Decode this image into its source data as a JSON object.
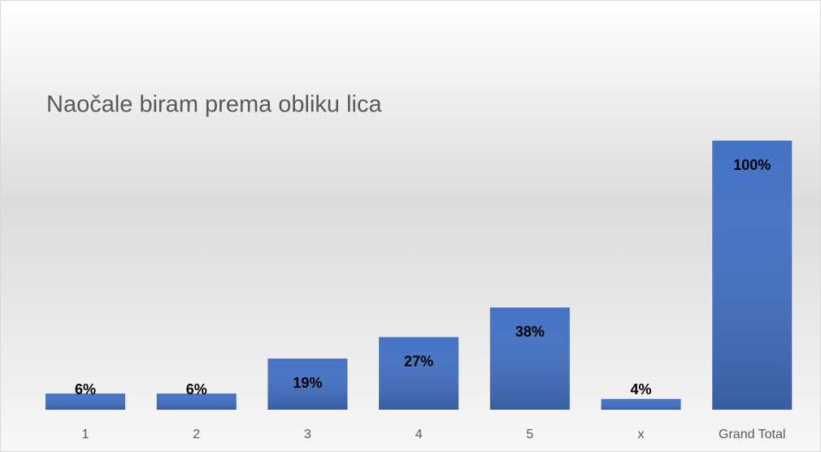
{
  "chart_data": {
    "type": "bar",
    "title": "Naočale biram prema obliku lica",
    "categories": [
      "1",
      "2",
      "3",
      "4",
      "5",
      "x",
      "Grand Total"
    ],
    "values": [
      6,
      6,
      19,
      27,
      38,
      4,
      100
    ],
    "value_labels": [
      "6%",
      "6%",
      "19%",
      "27%",
      "38%",
      "4%",
      "100%"
    ],
    "color": "#4472c4"
  }
}
